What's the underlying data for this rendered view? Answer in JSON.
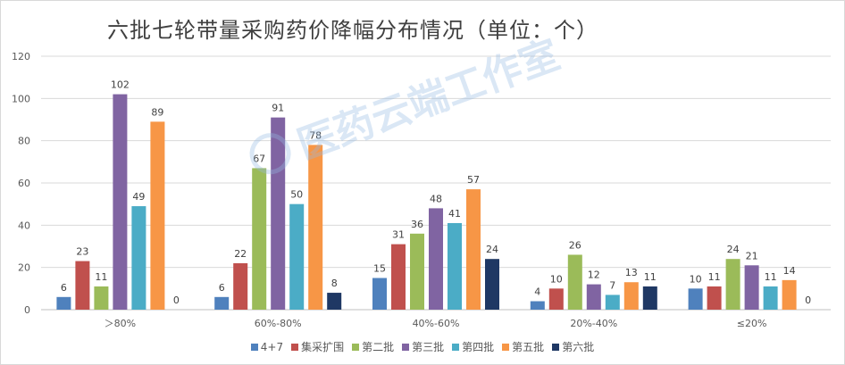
{
  "chart_data": {
    "type": "bar",
    "title": "六批七轮带量采购药价降幅分布情况（单位：个）",
    "categories": [
      "＞80%",
      "60%-80%",
      "40%-60%",
      "20%-40%",
      "≤20%"
    ],
    "series": [
      {
        "name": "4+7",
        "color": "#4f81bd",
        "values": [
          6,
          6,
          15,
          4,
          10
        ]
      },
      {
        "name": "集采扩围",
        "color": "#c0504d",
        "values": [
          23,
          22,
          31,
          10,
          11
        ]
      },
      {
        "name": "第二批",
        "color": "#9bbb59",
        "values": [
          11,
          67,
          36,
          26,
          24
        ]
      },
      {
        "name": "第三批",
        "color": "#8064a2",
        "values": [
          102,
          91,
          48,
          12,
          21
        ]
      },
      {
        "name": "第四批",
        "color": "#4bacc6",
        "values": [
          49,
          50,
          41,
          7,
          11
        ]
      },
      {
        "name": "第五批",
        "color": "#f79646",
        "values": [
          89,
          78,
          57,
          13,
          14
        ]
      },
      {
        "name": "第六批",
        "color": "#1f3864",
        "values": [
          0,
          8,
          24,
          11,
          0
        ]
      }
    ],
    "ylim": [
      0,
      120
    ],
    "yticks": [
      0,
      20,
      40,
      60,
      80,
      100,
      120
    ],
    "xlabel": "",
    "ylabel": "",
    "grid": true,
    "legend": "bottom"
  },
  "watermark": "医药云端工作室"
}
